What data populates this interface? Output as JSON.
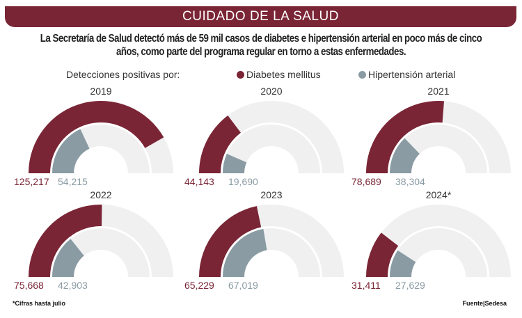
{
  "header": {
    "title": "CUIDADO DE LA SALUD",
    "subtitle_line1": "La Secretaría de Salud detectó más de 59 mil casos de diabetes e hipertensión arterial en poco más de cinco",
    "subtitle_line2": "años, como parte del programa regular en torno a estas enfermedades."
  },
  "legend": {
    "prefix": "Detecciones positivas por:",
    "diabetes": "Diabetes mellitus",
    "hipertension": "Hipertensión arterial"
  },
  "colors": {
    "diabetes": "#7a2535",
    "hipertension": "#8a9ba3",
    "track": "#f0f0f1"
  },
  "chart_data": {
    "type": "gauge",
    "scale_max": 150000,
    "series": [
      {
        "name": "Diabetes mellitus"
      },
      {
        "name": "Hipertensión arterial"
      }
    ],
    "panels": [
      {
        "year": "2019",
        "diabetes": 125217,
        "hipertension": 54215,
        "diabetes_label": "125,217",
        "hipertension_label": "54,215"
      },
      {
        "year": "2020",
        "diabetes": 44143,
        "hipertension": 19690,
        "diabetes_label": "44,143",
        "hipertension_label": "19,690"
      },
      {
        "year": "2021",
        "diabetes": 78689,
        "hipertension": 38304,
        "diabetes_label": "78,689",
        "hipertension_label": "38,304"
      },
      {
        "year": "2022",
        "diabetes": 75668,
        "hipertension": 42903,
        "diabetes_label": "75,668",
        "hipertension_label": "42,903"
      },
      {
        "year": "2023",
        "diabetes": 65229,
        "hipertension": 67019,
        "diabetes_label": "65,229",
        "hipertension_label": "67,019"
      },
      {
        "year": "2024*",
        "diabetes": 31411,
        "hipertension": 27629,
        "diabetes_label": "31,411",
        "hipertension_label": "27,629"
      }
    ]
  },
  "footer": {
    "note": "*Cifras hasta julio",
    "source": "Fuente|Sedesa"
  }
}
